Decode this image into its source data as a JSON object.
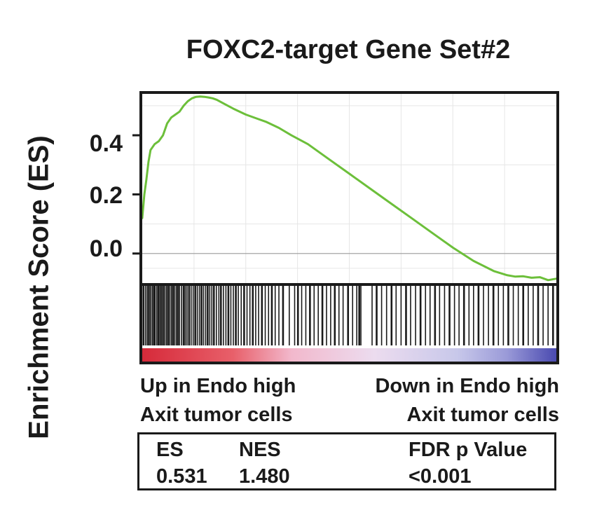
{
  "chart_data": {
    "type": "line",
    "title": "FOXC2-target Gene Set#2",
    "ylabel": "Enrichment Score (ES)",
    "yticks": [
      "0.4",
      "0.2",
      "0.0"
    ],
    "ytick_values": [
      0.4,
      0.2,
      0.0
    ],
    "ylim": [
      -0.1,
      0.54
    ],
    "xlim": [
      0,
      1
    ],
    "grid": true,
    "series": [
      {
        "color": "#6cbf3a",
        "x": [
          0.0,
          0.005,
          0.01,
          0.015,
          0.02,
          0.03,
          0.04,
          0.05,
          0.06,
          0.07,
          0.08,
          0.09,
          0.1,
          0.11,
          0.12,
          0.13,
          0.14,
          0.15,
          0.16,
          0.17,
          0.18,
          0.2,
          0.22,
          0.25,
          0.28,
          0.3,
          0.33,
          0.36,
          0.4,
          0.45,
          0.5,
          0.55,
          0.6,
          0.65,
          0.7,
          0.75,
          0.8,
          0.85,
          0.88,
          0.9,
          0.92,
          0.94,
          0.96,
          0.98,
          1.0
        ],
        "y": [
          0.12,
          0.2,
          0.25,
          0.31,
          0.35,
          0.37,
          0.38,
          0.4,
          0.44,
          0.46,
          0.47,
          0.48,
          0.5,
          0.515,
          0.525,
          0.53,
          0.531,
          0.53,
          0.528,
          0.525,
          0.52,
          0.505,
          0.49,
          0.47,
          0.455,
          0.445,
          0.425,
          0.4,
          0.37,
          0.32,
          0.27,
          0.22,
          0.17,
          0.12,
          0.07,
          0.02,
          -0.025,
          -0.06,
          -0.073,
          -0.078,
          -0.077,
          -0.082,
          -0.08,
          -0.09,
          -0.085
        ]
      }
    ],
    "hits_note": "black bars in the hit strip are gene set members",
    "hit_positions": [
      0.003,
      0.008,
      0.012,
      0.016,
      0.02,
      0.024,
      0.028,
      0.031,
      0.035,
      0.039,
      0.043,
      0.046,
      0.05,
      0.054,
      0.058,
      0.062,
      0.066,
      0.07,
      0.074,
      0.078,
      0.082,
      0.086,
      0.09,
      0.095,
      0.1,
      0.104,
      0.108,
      0.113,
      0.118,
      0.123,
      0.128,
      0.133,
      0.138,
      0.143,
      0.148,
      0.153,
      0.158,
      0.163,
      0.168,
      0.173,
      0.179,
      0.185,
      0.19,
      0.196,
      0.202,
      0.208,
      0.214,
      0.22,
      0.226,
      0.232,
      0.239,
      0.246,
      0.253,
      0.26,
      0.267,
      0.274,
      0.281,
      0.289,
      0.297,
      0.305,
      0.313,
      0.321,
      0.33,
      0.34,
      0.355,
      0.368,
      0.376,
      0.385,
      0.395,
      0.405,
      0.415,
      0.425,
      0.435,
      0.445,
      0.455,
      0.465,
      0.475,
      0.485,
      0.497,
      0.508,
      0.518,
      0.524,
      0.528,
      0.555,
      0.566,
      0.578,
      0.59,
      0.602,
      0.613,
      0.625,
      0.637,
      0.648,
      0.66,
      0.672,
      0.684,
      0.695,
      0.707,
      0.718,
      0.73,
      0.742,
      0.754,
      0.765,
      0.777,
      0.789,
      0.8,
      0.812,
      0.824,
      0.836,
      0.848,
      0.86,
      0.872,
      0.884,
      0.896,
      0.908,
      0.92,
      0.932,
      0.944,
      0.956,
      0.968,
      0.98,
      0.992
    ]
  },
  "captions": {
    "left_line1": "Up in Endo high",
    "left_line2": "Axit tumor cells",
    "right_line1": "Down in Endo high",
    "right_line2": "Axit tumor cells"
  },
  "stats": {
    "es_label": "ES",
    "nes_label": "NES",
    "fdr_label": "FDR p Value",
    "es_value": "0.531",
    "nes_value": "1.480",
    "fdr_value": "<0.001"
  },
  "colors": {
    "curve": "#6cbf3a",
    "ramp_red": "#d62a3a",
    "ramp_pink": "#f2b8cc",
    "ramp_lav": "#dcdcf0",
    "ramp_blue": "#4a4ab0",
    "frame": "#1a1a1a",
    "grid": "#e6e6e6",
    "zero_line": "#9a9a9a"
  }
}
